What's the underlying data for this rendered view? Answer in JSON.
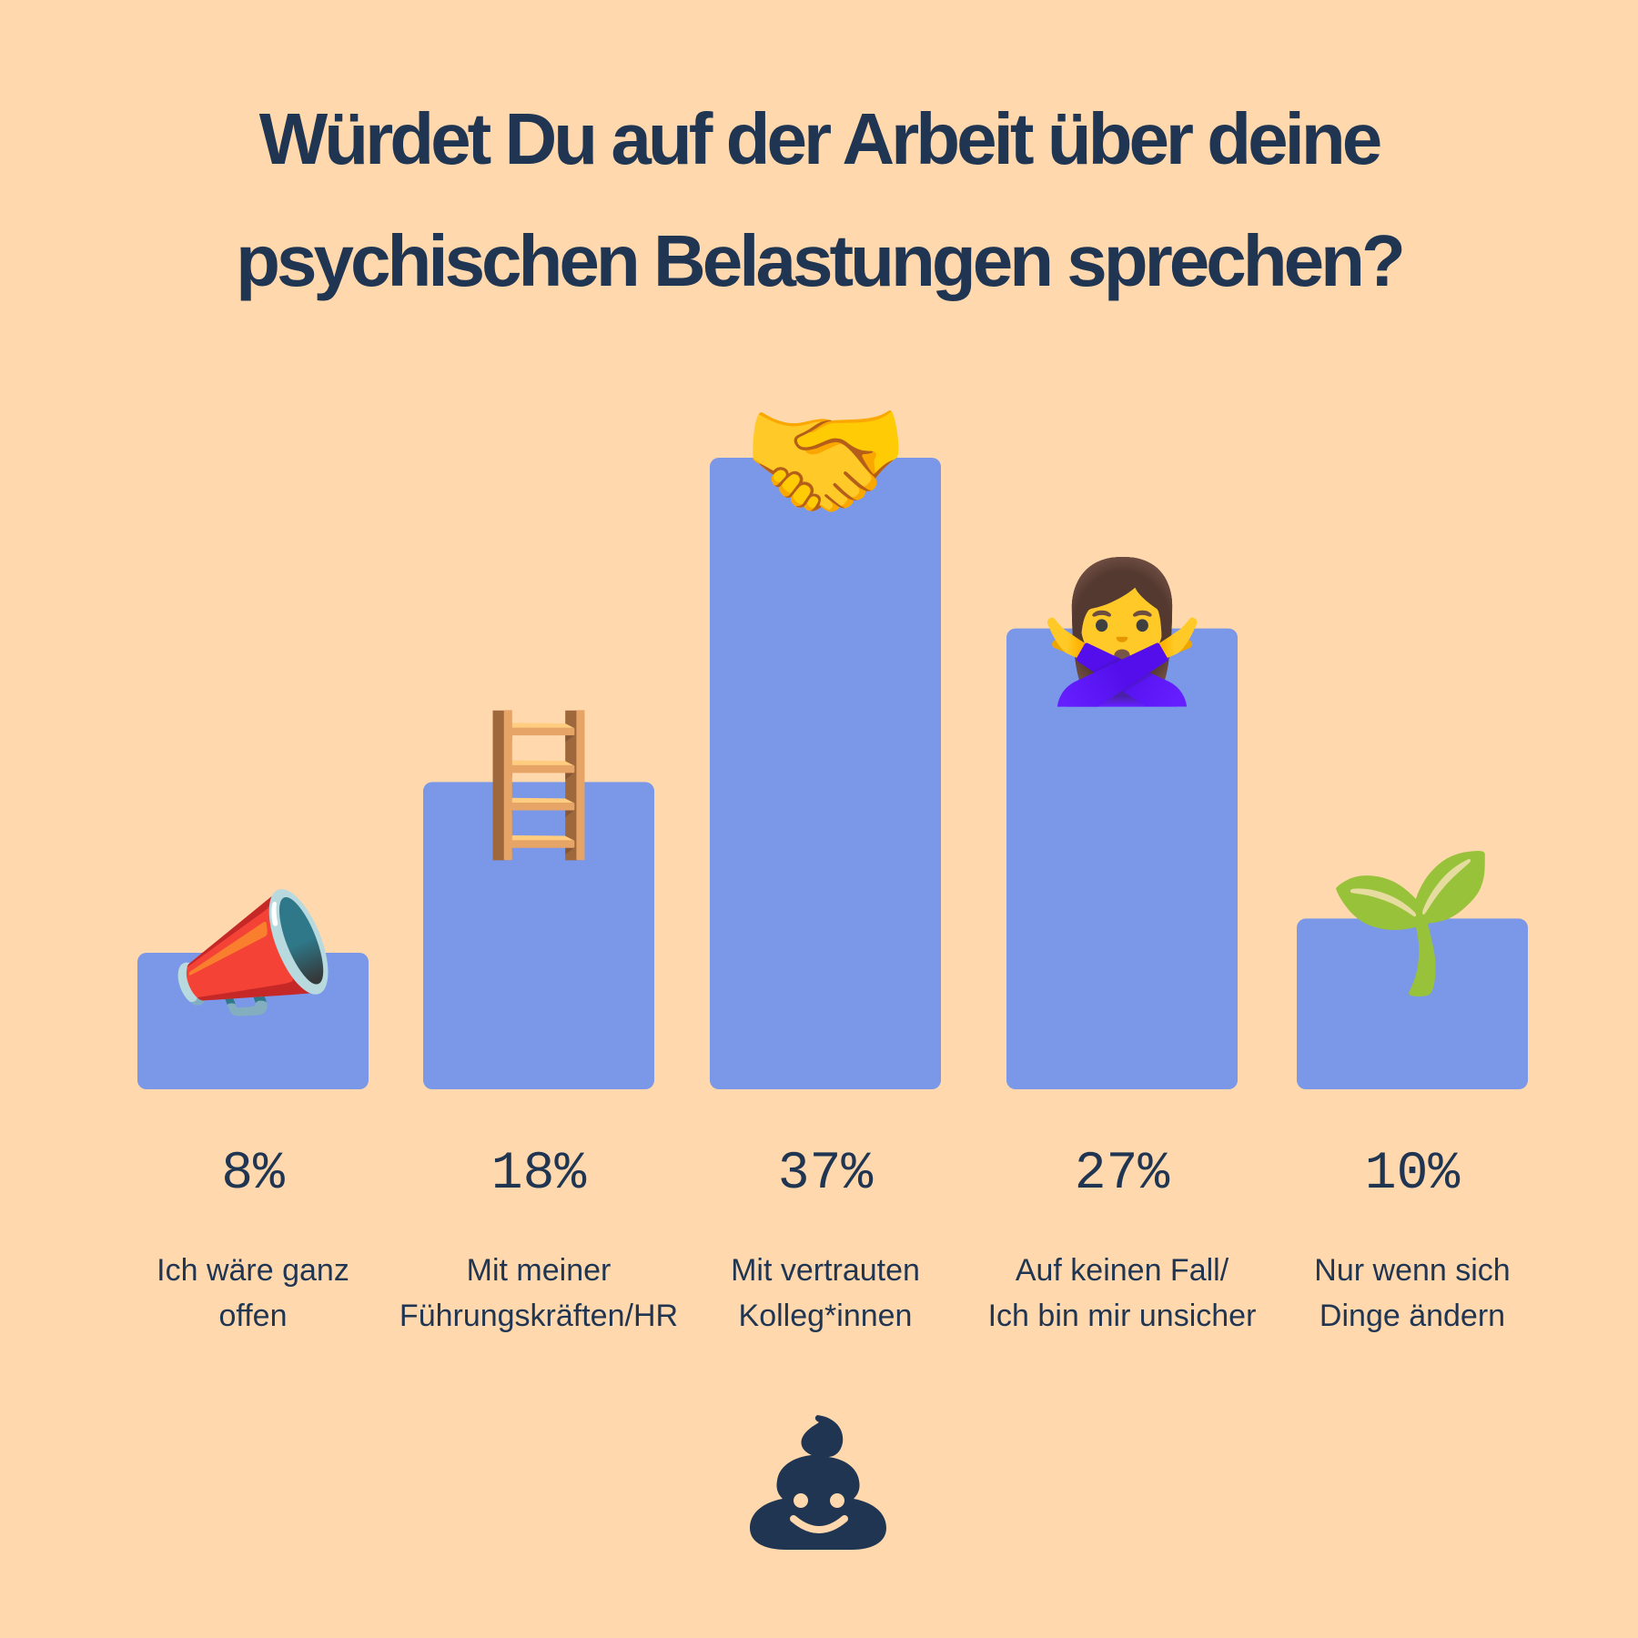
{
  "title_lines": [
    "Würdet Du auf der Arbeit über deine",
    "psychischen Belastungen sprechen?"
  ],
  "chart_data": {
    "type": "bar",
    "categories": [
      [
        "Ich wäre ganz",
        "offen"
      ],
      [
        "Mit meiner",
        "Führungskräften/HR"
      ],
      [
        "Mit vertrauten",
        "Kolleg*innen"
      ],
      [
        "Auf keinen Fall/",
        "Ich bin mir unsicher"
      ],
      [
        "Nur wenn sich",
        "Dinge ändern"
      ]
    ],
    "values": [
      8,
      18,
      37,
      27,
      10
    ],
    "value_labels": [
      "8%",
      "18%",
      "37%",
      "27%",
      "10%"
    ],
    "icons": [
      "megaphone-icon",
      "ladder-icon",
      "handshake-icon",
      "person-gesturing-no-icon",
      "seedling-icon"
    ],
    "icon_glyphs": [
      "📣",
      "🪜",
      "🤝",
      "🙅‍♀️",
      "🌱"
    ],
    "ylim": [
      0,
      37
    ],
    "bar_color": "#7A97E8",
    "text_color": "#1F3552",
    "background": "#FFD8AD",
    "grid": false,
    "legend": "none"
  },
  "logo": {
    "icon": "smiling-poop-logo"
  }
}
